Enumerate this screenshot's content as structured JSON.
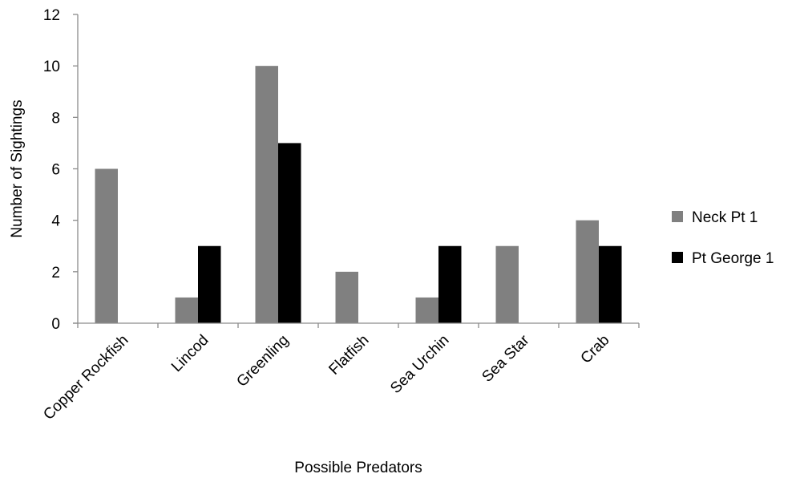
{
  "chart_data": {
    "type": "bar",
    "categories": [
      "Copper Rockfish",
      "Lincod",
      "Greenling",
      "Flatfish",
      "Sea Urchin",
      "Sea Star",
      "Crab"
    ],
    "series": [
      {
        "name": "Neck Pt 1",
        "color": "#808080",
        "values": [
          6,
          1,
          10,
          2,
          1,
          3,
          4
        ]
      },
      {
        "name": "Pt George 1",
        "color": "#000000",
        "values": [
          0,
          3,
          7,
          0,
          3,
          0,
          3
        ]
      }
    ],
    "xlabel": "Possible Predators",
    "ylabel": "Number of Sightings",
    "ylim": [
      0,
      12
    ],
    "yticks": [
      0,
      2,
      4,
      6,
      8,
      10,
      12
    ],
    "grid": false,
    "legend_position": "right"
  }
}
